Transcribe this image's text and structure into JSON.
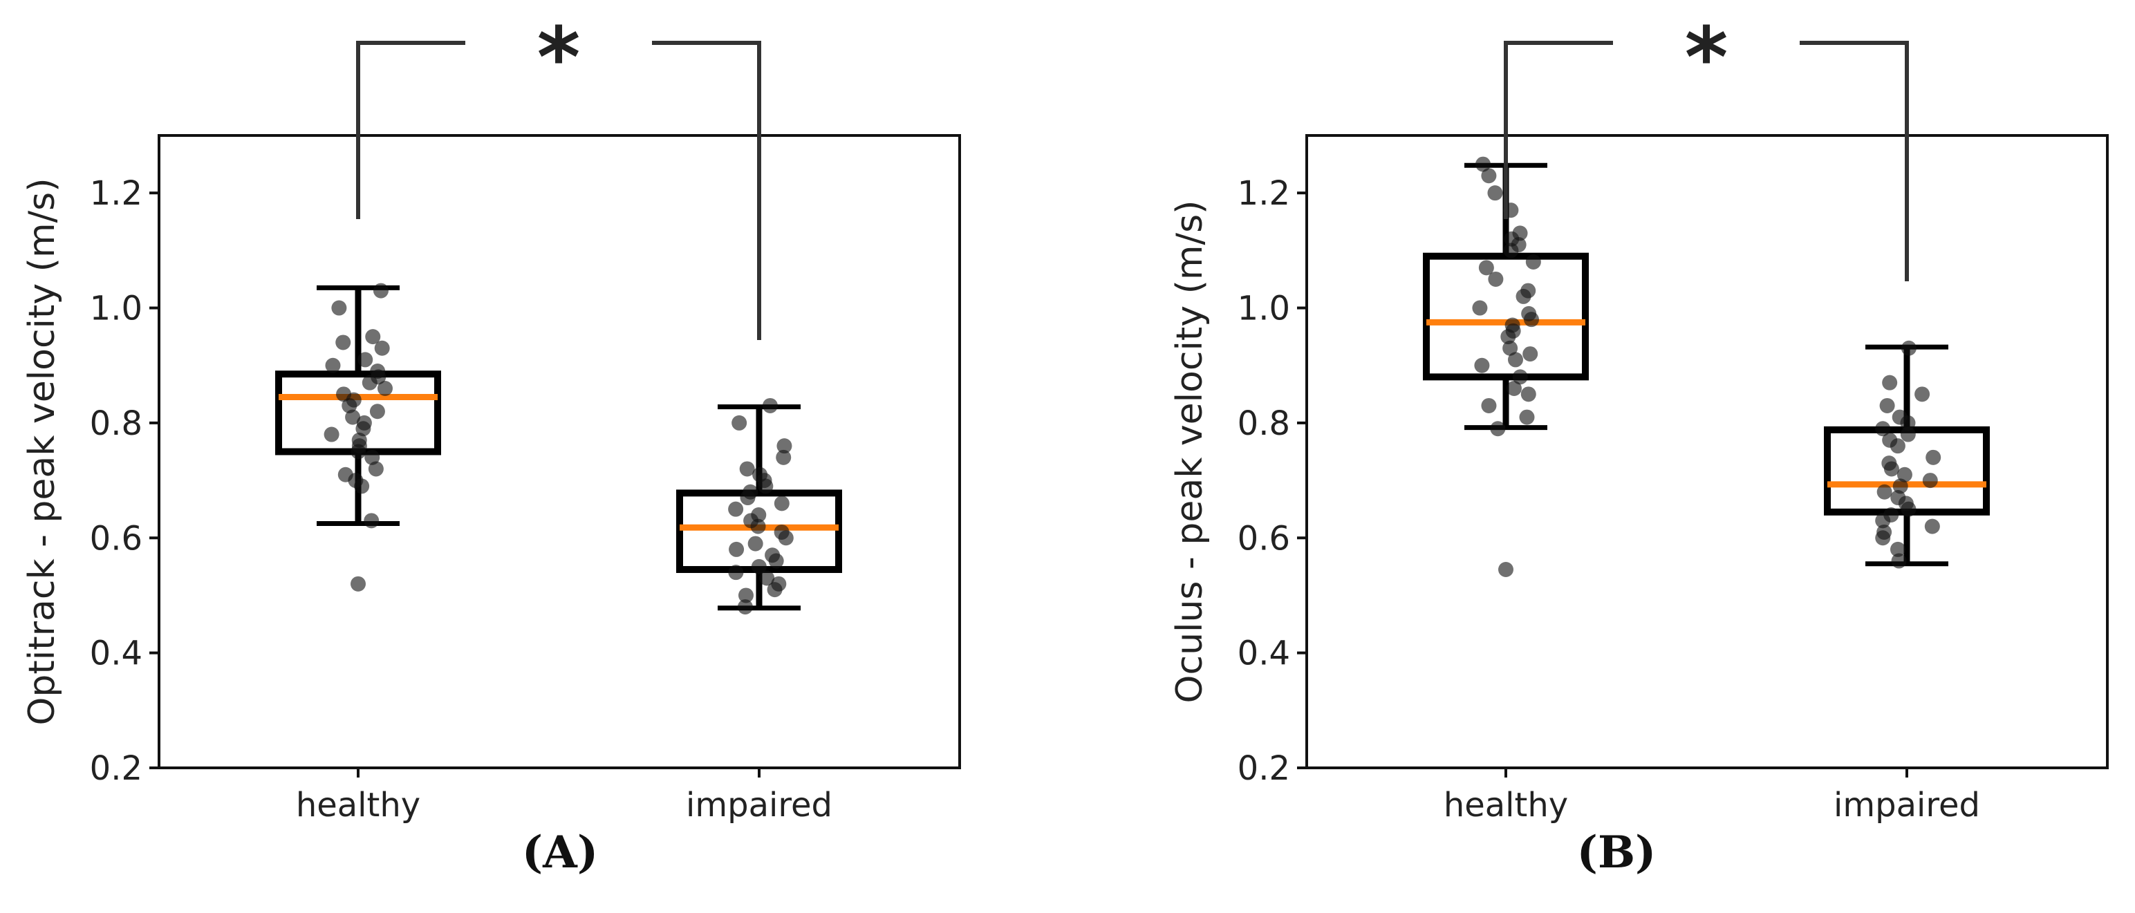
{
  "chart_data": [
    {
      "type": "box",
      "panel_label": "(A)",
      "ylabel": "Optitrack - peak velocity (m/s)",
      "categories": [
        "healthy",
        "impaired"
      ],
      "ylim": [
        0.2,
        1.3
      ],
      "yticks": [
        0.2,
        0.4,
        0.6,
        0.8,
        1.0,
        1.2
      ],
      "ytick_labels": [
        "0.2",
        "0.4",
        "0.6",
        "0.8",
        "1.0",
        "1.2"
      ],
      "significance": "*",
      "boxes": [
        {
          "category": "healthy",
          "whisker_low": 0.625,
          "q1": 0.75,
          "median": 0.845,
          "q3": 0.885,
          "whisker_high": 1.035,
          "outliers": [
            0.52
          ],
          "points": [
            0.63,
            0.69,
            0.7,
            0.71,
            0.72,
            0.74,
            0.75,
            0.76,
            0.77,
            0.78,
            0.79,
            0.8,
            0.81,
            0.82,
            0.83,
            0.84,
            0.85,
            0.86,
            0.87,
            0.88,
            0.89,
            0.9,
            0.91,
            0.93,
            0.94,
            0.95,
            1.0,
            1.03
          ]
        },
        {
          "category": "impaired",
          "whisker_low": 0.478,
          "q1": 0.545,
          "median": 0.618,
          "q3": 0.678,
          "whisker_high": 0.828,
          "outliers": [],
          "points": [
            0.48,
            0.5,
            0.51,
            0.52,
            0.53,
            0.54,
            0.55,
            0.56,
            0.57,
            0.58,
            0.59,
            0.6,
            0.61,
            0.62,
            0.63,
            0.64,
            0.65,
            0.66,
            0.67,
            0.68,
            0.69,
            0.7,
            0.71,
            0.72,
            0.74,
            0.76,
            0.8,
            0.83
          ]
        }
      ]
    },
    {
      "type": "box",
      "panel_label": "(B)",
      "ylabel": "Oculus - peak velocity (m/s)",
      "categories": [
        "healthy",
        "impaired"
      ],
      "ylim": [
        0.2,
        1.3
      ],
      "yticks": [
        0.2,
        0.4,
        0.6,
        0.8,
        1.0,
        1.2
      ],
      "ytick_labels": [
        "0.2",
        "0.4",
        "0.6",
        "0.8",
        "1.0",
        "1.2"
      ],
      "significance": "*",
      "boxes": [
        {
          "category": "healthy",
          "whisker_low": 0.792,
          "q1": 0.88,
          "median": 0.975,
          "q3": 1.09,
          "whisker_high": 1.248,
          "outliers": [
            0.545
          ],
          "points": [
            0.79,
            0.81,
            0.83,
            0.85,
            0.86,
            0.88,
            0.9,
            0.91,
            0.92,
            0.93,
            0.95,
            0.96,
            0.97,
            0.98,
            0.99,
            1.0,
            1.02,
            1.03,
            1.05,
            1.07,
            1.08,
            1.1,
            1.11,
            1.12,
            1.13,
            1.17,
            1.2,
            1.23,
            1.25
          ]
        },
        {
          "category": "impaired",
          "whisker_low": 0.555,
          "q1": 0.645,
          "median": 0.693,
          "q3": 0.788,
          "whisker_high": 0.932,
          "outliers": [],
          "points": [
            0.56,
            0.58,
            0.6,
            0.61,
            0.62,
            0.63,
            0.64,
            0.65,
            0.66,
            0.67,
            0.68,
            0.69,
            0.7,
            0.71,
            0.72,
            0.73,
            0.74,
            0.76,
            0.77,
            0.78,
            0.79,
            0.8,
            0.81,
            0.83,
            0.85,
            0.87,
            0.93
          ]
        }
      ]
    }
  ]
}
